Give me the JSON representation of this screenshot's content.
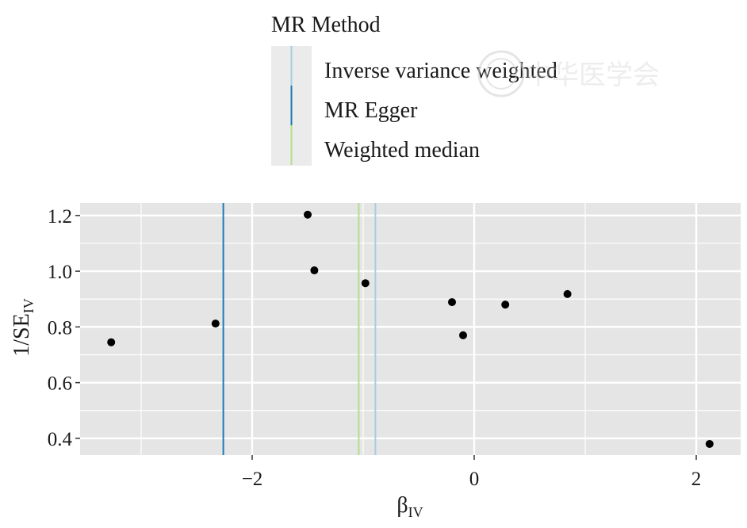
{
  "chart_data": {
    "type": "scatter",
    "x_axis": {
      "title": "β",
      "title_subscript": "IV",
      "min": -3.55,
      "max": 2.4,
      "ticks": [
        -2,
        0,
        2
      ],
      "tick_labels": [
        "−2",
        "0",
        "2"
      ]
    },
    "y_axis": {
      "title": "1/SE",
      "title_subscript": "IV",
      "min": 0.34,
      "max": 1.245,
      "ticks": [
        0.4,
        0.6,
        0.8,
        1.0,
        1.2
      ],
      "tick_labels": [
        "0.4",
        "0.6",
        "0.8",
        "1.0",
        "1.2"
      ]
    },
    "grid": true,
    "points": [
      {
        "x": -3.27,
        "y": 0.745
      },
      {
        "x": -2.33,
        "y": 0.812
      },
      {
        "x": -1.5,
        "y": 1.203
      },
      {
        "x": -1.44,
        "y": 1.003
      },
      {
        "x": -0.98,
        "y": 0.957
      },
      {
        "x": -0.2,
        "y": 0.889
      },
      {
        "x": -0.1,
        "y": 0.77
      },
      {
        "x": 0.28,
        "y": 0.88
      },
      {
        "x": 0.84,
        "y": 0.918
      },
      {
        "x": 2.12,
        "y": 0.38
      }
    ],
    "vlines": [
      {
        "method": "Inverse variance weighted",
        "x": -0.89,
        "color": "#a6cee3"
      },
      {
        "method": "MR Egger",
        "x": -2.26,
        "color": "#1f78b4"
      },
      {
        "method": "Weighted median",
        "x": -1.04,
        "color": "#b2df8a"
      }
    ],
    "legend": {
      "title": "MR Method",
      "position": "top",
      "entries": [
        "Inverse variance weighted",
        "MR Egger",
        "Weighted median"
      ]
    },
    "colors": {
      "panel": "#e5e5e5",
      "grid": "#ffffff",
      "point": "#000000"
    }
  },
  "watermark": {
    "text": "中华医学会"
  }
}
